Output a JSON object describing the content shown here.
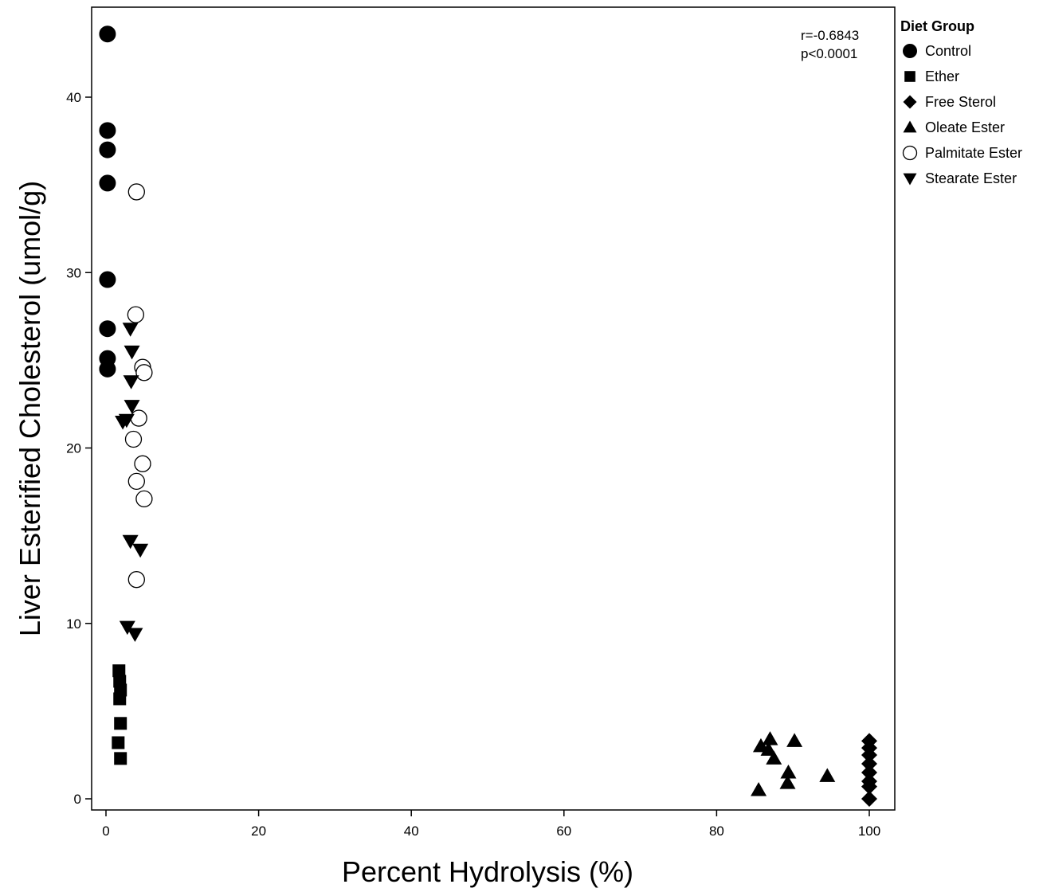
{
  "chart_data": {
    "type": "scatter",
    "title": "",
    "xlabel": "Percent Hydrolysis (%)",
    "ylabel": "Liver Esterified Cholesterol (umol/g)",
    "xlim": [
      -2,
      104
    ],
    "ylim": [
      -0.5,
      45
    ],
    "xticks": [
      0,
      20,
      40,
      60,
      80,
      100
    ],
    "yticks": [
      0,
      10,
      20,
      30,
      40
    ],
    "grid": false,
    "annotations": [
      "r=-0.6843",
      "p<0.0001"
    ],
    "legend": {
      "title": "Diet Group",
      "placement": "right"
    },
    "series": [
      {
        "name": "Control",
        "marker": "circle-filled",
        "points": [
          [
            0.2,
            43.6
          ],
          [
            0.2,
            38.1
          ],
          [
            0.2,
            37.0
          ],
          [
            0.2,
            35.1
          ],
          [
            0.2,
            29.6
          ],
          [
            0.2,
            26.8
          ],
          [
            0.2,
            25.1
          ],
          [
            0.2,
            24.5
          ]
        ]
      },
      {
        "name": "Ether",
        "marker": "square-filled",
        "points": [
          [
            1.7,
            7.3
          ],
          [
            1.8,
            6.7
          ],
          [
            1.9,
            6.2
          ],
          [
            1.8,
            5.7
          ],
          [
            1.9,
            4.3
          ],
          [
            1.6,
            3.2
          ],
          [
            1.9,
            2.3
          ]
        ]
      },
      {
        "name": "Free Sterol",
        "marker": "diamond-filled",
        "points": [
          [
            100,
            3.3
          ],
          [
            100,
            2.9
          ],
          [
            100,
            2.5
          ],
          [
            100,
            2.0
          ],
          [
            100,
            1.5
          ],
          [
            100,
            1.0
          ],
          [
            100,
            0.7
          ],
          [
            100,
            0.0
          ]
        ]
      },
      {
        "name": "Oleate Ester",
        "marker": "triangle-up-filled",
        "points": [
          [
            85.5,
            0.5
          ],
          [
            85.8,
            3.0
          ],
          [
            86.8,
            2.8
          ],
          [
            87.0,
            3.4
          ],
          [
            87.5,
            2.3
          ],
          [
            89.3,
            0.9
          ],
          [
            89.4,
            1.5
          ],
          [
            90.2,
            3.3
          ],
          [
            94.5,
            1.3
          ]
        ]
      },
      {
        "name": "Palmitate Ester",
        "marker": "circle-open",
        "points": [
          [
            4.0,
            34.6
          ],
          [
            3.9,
            27.6
          ],
          [
            4.8,
            24.6
          ],
          [
            5.0,
            24.3
          ],
          [
            4.3,
            21.7
          ],
          [
            3.6,
            20.5
          ],
          [
            4.8,
            19.1
          ],
          [
            4.0,
            18.1
          ],
          [
            5.0,
            17.1
          ],
          [
            4.0,
            12.5
          ]
        ]
      },
      {
        "name": "Stearate Ester",
        "marker": "triangle-down-filled",
        "points": [
          [
            3.2,
            26.8
          ],
          [
            3.4,
            25.5
          ],
          [
            3.3,
            23.8
          ],
          [
            3.4,
            22.4
          ],
          [
            2.2,
            21.5
          ],
          [
            2.7,
            21.6
          ],
          [
            3.2,
            14.7
          ],
          [
            4.5,
            14.2
          ],
          [
            2.8,
            9.8
          ],
          [
            3.8,
            9.4
          ]
        ]
      }
    ]
  }
}
